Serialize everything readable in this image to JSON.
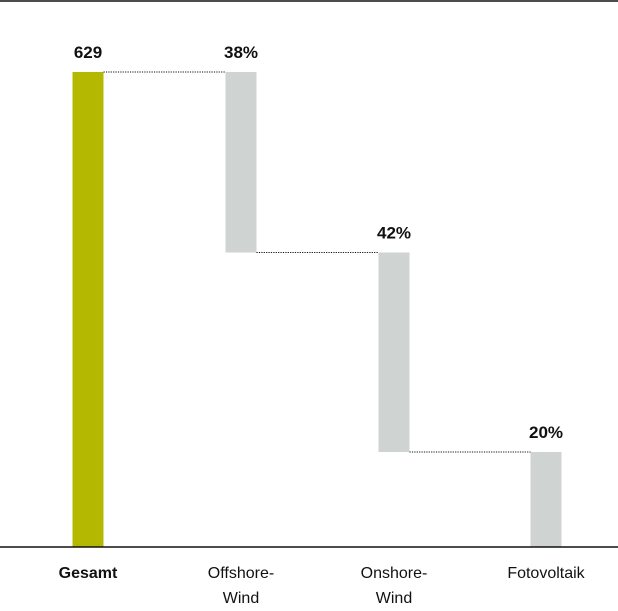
{
  "chart_data": {
    "type": "bar",
    "subtype": "waterfall",
    "categories": [
      [
        "Gesamt"
      ],
      [
        "Offshore-",
        "Wind"
      ],
      [
        "Onshore-",
        "Wind"
      ],
      [
        "Fotovoltaik"
      ]
    ],
    "total": 629,
    "total_label": "629",
    "segments": [
      {
        "category_index": 1,
        "share_percent": 38,
        "label": "38%"
      },
      {
        "category_index": 2,
        "share_percent": 42,
        "label": "42%"
      },
      {
        "category_index": 3,
        "share_percent": 20,
        "label": "20%"
      }
    ],
    "ylim": [
      0,
      629
    ],
    "colors": {
      "total": "#b5b800",
      "segment": "#cfd3d2",
      "axis": "#111111",
      "connector": "#111111"
    },
    "grid": false,
    "legend": "none"
  }
}
